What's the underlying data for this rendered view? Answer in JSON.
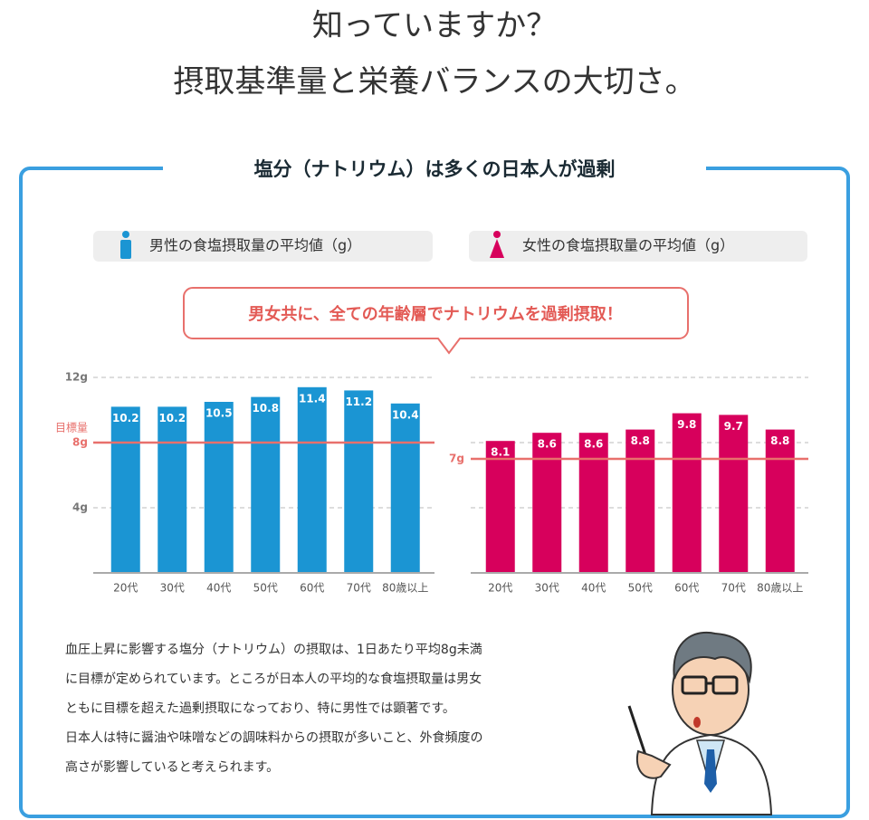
{
  "header": {
    "title_lines": [
      "知っていますか？",
      "摂取基準量と栄養バランスの大切さ。"
    ]
  },
  "section_title": "塩分（ナトリウム）は多くの日本人が過剰",
  "legends": [
    "男性の食塩摂取量の平均値（g）",
    "女性の食塩摂取量の平均値（g）"
  ],
  "callout": "男女共に、全ての年齢層でナトリウムを過剰摂取！",
  "chart_data": [
    {
      "type": "bar",
      "categories": [
        "20代",
        "30代",
        "40代",
        "50代",
        "60代",
        "70代",
        "80歳以上"
      ],
      "values": [
        10.2,
        10.2,
        10.5,
        10.8,
        11.4,
        11.2,
        10.4
      ],
      "color": "#1b95d3",
      "ylim": [
        0,
        12
      ],
      "yticks": [
        {
          "value": 4,
          "label": "4g"
        },
        {
          "value": 8,
          "label": "8g"
        },
        {
          "value": 12,
          "label": "12g"
        }
      ],
      "target": {
        "value": 8,
        "label": "目標量"
      },
      "target_color": "#e8706c",
      "grid": true
    },
    {
      "type": "bar",
      "categories": [
        "20代",
        "30代",
        "40代",
        "50代",
        "60代",
        "70代",
        "80歳以上"
      ],
      "values": [
        8.1,
        8.6,
        8.6,
        8.8,
        9.8,
        9.7,
        8.8
      ],
      "color": "#d7005c",
      "ylim": [
        0,
        12
      ],
      "gridlines": [
        4,
        8,
        12
      ],
      "target": {
        "value": 7,
        "label": "7g"
      },
      "target_color": "#e8706c",
      "grid": true
    }
  ],
  "body": [
    "血圧上昇に影響する塩分（ナトリウム）の摂取は、1日あたり平均8g未満",
    "に目標が定められています。ところが日本人の平均的な食塩摂取量は男女",
    "ともに目標を超えた過剰摂取になっており、特に男性では顕著です。",
    "日本人は特に醤油や味噌などの調味料からの摂取が多いこと、外食頻度の",
    "高さが影響していると考えられます。"
  ]
}
